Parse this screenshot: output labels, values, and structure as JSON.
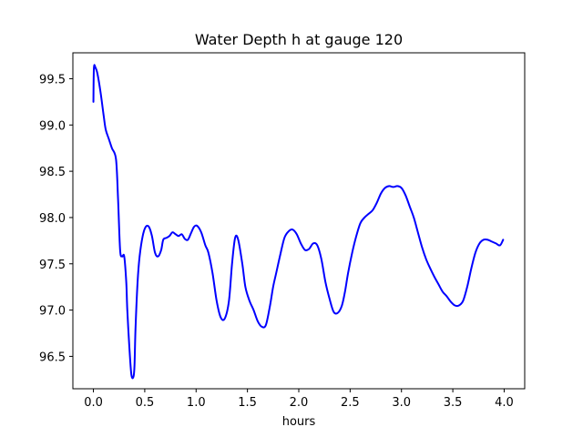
{
  "chart_data": {
    "type": "line",
    "title": "Water Depth h at gauge 120",
    "xlabel": "hours",
    "ylabel": "",
    "xlim": [
      -0.2,
      4.2
    ],
    "ylim": [
      96.15,
      99.78
    ],
    "xticks": [
      0.0,
      0.5,
      1.0,
      1.5,
      2.0,
      2.5,
      3.0,
      3.5,
      4.0
    ],
    "xtick_labels": [
      "0.0",
      "0.5",
      "1.0",
      "1.5",
      "2.0",
      "2.5",
      "3.0",
      "3.5",
      "4.0"
    ],
    "yticks": [
      96.5,
      97.0,
      97.5,
      98.0,
      98.5,
      99.0,
      99.5
    ],
    "ytick_labels": [
      "96.5",
      "97.0",
      "97.5",
      "98.0",
      "98.5",
      "99.0",
      "99.5"
    ],
    "grid": false,
    "line_color": "#0000ff",
    "series": [
      {
        "x": [
          0.0,
          0.005,
          0.02,
          0.04,
          0.07,
          0.1,
          0.12,
          0.15,
          0.18,
          0.22,
          0.24,
          0.26,
          0.28,
          0.3,
          0.32,
          0.33,
          0.35,
          0.37,
          0.39,
          0.4,
          0.41,
          0.43,
          0.45,
          0.48,
          0.51,
          0.54,
          0.57,
          0.6,
          0.63,
          0.66,
          0.68,
          0.71,
          0.74,
          0.77,
          0.8,
          0.83,
          0.86,
          0.89,
          0.92,
          0.95,
          0.98,
          1.01,
          1.05,
          1.09,
          1.12,
          1.16,
          1.2,
          1.24,
          1.28,
          1.32,
          1.35,
          1.38,
          1.41,
          1.45,
          1.48,
          1.52,
          1.56,
          1.6,
          1.64,
          1.68,
          1.72,
          1.75,
          1.78,
          1.82,
          1.86,
          1.9,
          1.94,
          1.98,
          2.02,
          2.06,
          2.1,
          2.14,
          2.18,
          2.22,
          2.26,
          2.3,
          2.34,
          2.38,
          2.42,
          2.45,
          2.48,
          2.52,
          2.56,
          2.6,
          2.64,
          2.68,
          2.72,
          2.76,
          2.8,
          2.84,
          2.88,
          2.92,
          2.96,
          3.0,
          3.04,
          3.08,
          3.12,
          3.16,
          3.2,
          3.24,
          3.28,
          3.32,
          3.36,
          3.4,
          3.44,
          3.48,
          3.52,
          3.56,
          3.6,
          3.64,
          3.68,
          3.72,
          3.76,
          3.8,
          3.84,
          3.88,
          3.92,
          3.96,
          3.99
        ],
        "y": [
          99.25,
          99.62,
          99.62,
          99.55,
          99.35,
          99.1,
          98.95,
          98.85,
          98.75,
          98.63,
          98.2,
          97.65,
          97.58,
          97.58,
          97.3,
          97.0,
          96.6,
          96.3,
          96.28,
          96.4,
          96.8,
          97.3,
          97.58,
          97.8,
          97.9,
          97.9,
          97.8,
          97.62,
          97.58,
          97.65,
          97.76,
          97.78,
          97.8,
          97.84,
          97.82,
          97.8,
          97.82,
          97.77,
          97.76,
          97.83,
          97.9,
          97.91,
          97.84,
          97.7,
          97.62,
          97.4,
          97.1,
          96.92,
          96.91,
          97.1,
          97.5,
          97.78,
          97.76,
          97.5,
          97.25,
          97.1,
          97.0,
          96.88,
          96.82,
          96.84,
          97.05,
          97.25,
          97.4,
          97.6,
          97.78,
          97.85,
          97.87,
          97.82,
          97.72,
          97.65,
          97.66,
          97.72,
          97.7,
          97.55,
          97.3,
          97.12,
          96.98,
          96.97,
          97.05,
          97.2,
          97.4,
          97.62,
          97.8,
          97.94,
          98.0,
          98.04,
          98.08,
          98.16,
          98.26,
          98.32,
          98.34,
          98.33,
          98.34,
          98.32,
          98.24,
          98.12,
          98.0,
          97.84,
          97.68,
          97.55,
          97.45,
          97.36,
          97.28,
          97.2,
          97.15,
          97.09,
          97.05,
          97.05,
          97.1,
          97.25,
          97.45,
          97.62,
          97.72,
          97.76,
          97.76,
          97.74,
          97.72,
          97.7,
          97.76
        ]
      }
    ]
  }
}
